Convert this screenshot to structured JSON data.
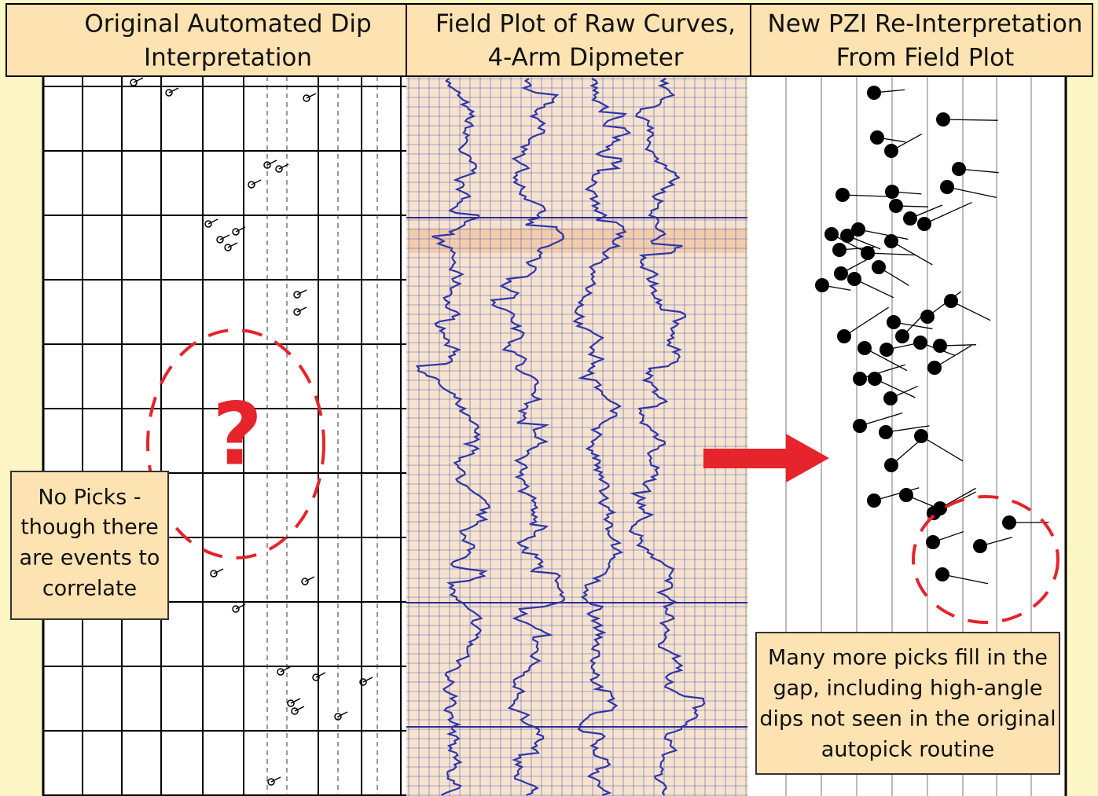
{
  "panels": [
    {
      "header": [
        "Original Automated Dip",
        "Interpretation"
      ]
    },
    {
      "header": [
        "Field Plot of Raw Curves,",
        "4-Arm Dipmeter"
      ]
    },
    {
      "header": [
        "New PZI Re-Interpretation",
        "From Field Plot"
      ]
    }
  ],
  "question_mark": "?",
  "left_note": [
    "No Picks -",
    "though there",
    "are events to",
    "correlate"
  ],
  "right_note": [
    "Many more picks fill in the",
    "gap, including high-angle",
    "dips not seen in the original",
    "autopick routine"
  ]
}
